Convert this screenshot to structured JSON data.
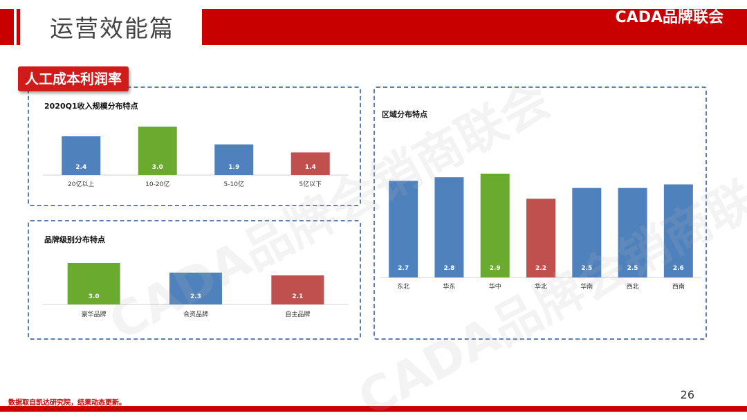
{
  "header": {
    "title": "运营效能篇",
    "brand": "CADA品牌联会"
  },
  "tag": "人工成本利润率",
  "watermark": "CADA品牌会销商联会",
  "footer": {
    "source": "数据取自凯达研究院，结果动态更新。",
    "page_number": "26"
  },
  "colors": {
    "blue": "#4f81bd",
    "green": "#6aaa2e",
    "red": "#c0504d",
    "header_red": "#c80000"
  },
  "chart_data": [
    {
      "type": "bar",
      "title": "2020Q1收入规模分布特点",
      "categories": [
        "20亿以上",
        "10-20亿",
        "5-10亿",
        "5亿以下"
      ],
      "values": [
        2.4,
        3.0,
        1.9,
        1.4
      ],
      "colors": [
        "#4f81bd",
        "#6aaa2e",
        "#4f81bd",
        "#c0504d"
      ],
      "ylim": [
        0,
        3.0
      ]
    },
    {
      "type": "bar",
      "title": "品牌级别分布特点",
      "categories": [
        "豪华品牌",
        "合资品牌",
        "自主品牌"
      ],
      "values": [
        3.0,
        2.3,
        2.1
      ],
      "colors": [
        "#6aaa2e",
        "#4f81bd",
        "#c0504d"
      ],
      "ylim": [
        0,
        3.0
      ]
    },
    {
      "type": "bar",
      "title": "区域分布特点",
      "categories": [
        "东北",
        "华东",
        "华中",
        "华北",
        "华南",
        "西北",
        "西南"
      ],
      "values": [
        2.7,
        2.8,
        2.9,
        2.2,
        2.5,
        2.5,
        2.6
      ],
      "colors": [
        "#4f81bd",
        "#4f81bd",
        "#6aaa2e",
        "#c0504d",
        "#4f81bd",
        "#4f81bd",
        "#4f81bd"
      ],
      "ylim": [
        0,
        2.9
      ]
    }
  ]
}
